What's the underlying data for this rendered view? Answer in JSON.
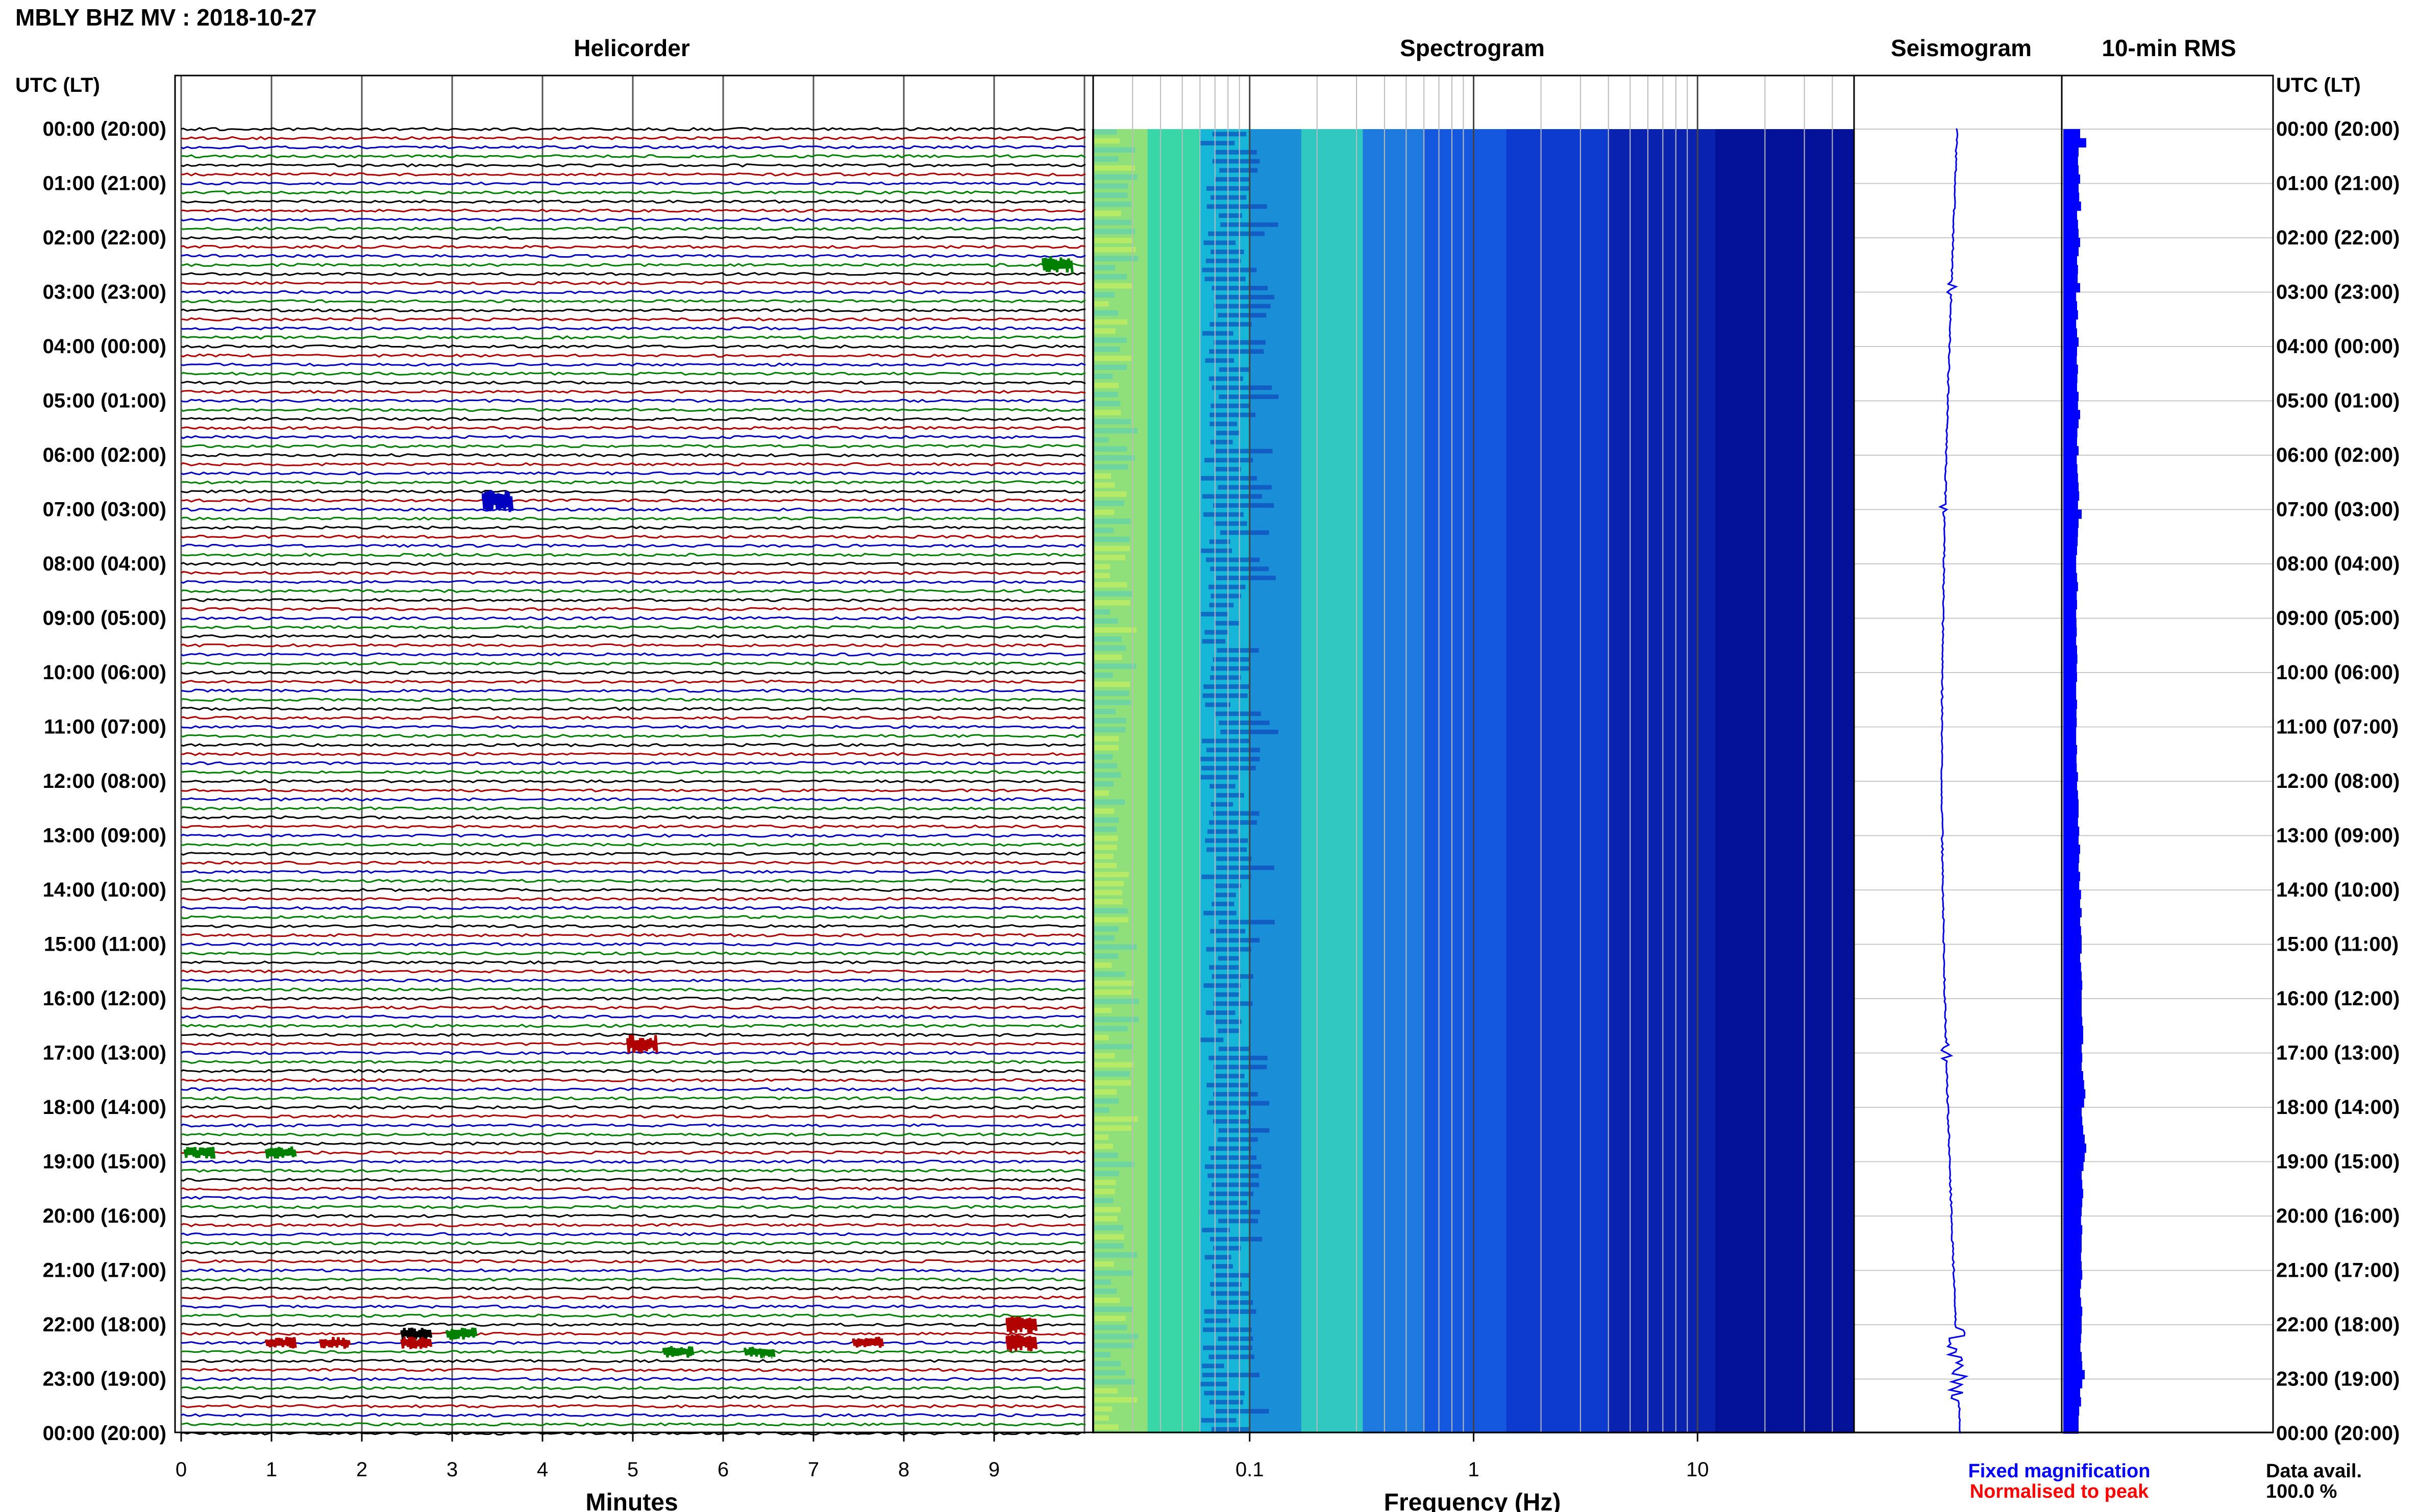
{
  "chart_data": {
    "type": "helicorder_spectrogram",
    "title": "MBLY BHZ MV : 2018-10-27",
    "panels": [
      {
        "name": "Helicorder",
        "xlabel": "Minutes",
        "x_ticks": [
          "0",
          "1",
          "2",
          "3",
          "4",
          "5",
          "6",
          "7",
          "8",
          "9"
        ],
        "xlim": [
          0,
          10
        ],
        "trace_colors": [
          "#000000",
          "#b00000",
          "#0000c0",
          "#008000"
        ],
        "lines_per_hour": 6,
        "events": [
          {
            "hour": 2,
            "line": 3,
            "minute": 9.7,
            "amp": 3,
            "color": "#008000"
          },
          {
            "hour": 6,
            "line": 5,
            "minute": 3.5,
            "amp": 4,
            "color": "#0000c0"
          },
          {
            "hour": 16,
            "line": 5,
            "minute": 5.1,
            "amp": 3,
            "color": "#b00000"
          },
          {
            "hour": 18,
            "line": 5,
            "minute": 0.2,
            "amp": 2,
            "color": "#008000"
          },
          {
            "hour": 18,
            "line": 5,
            "minute": 1.1,
            "amp": 2,
            "color": "#008000"
          },
          {
            "hour": 22,
            "line": 0,
            "minute": 9.3,
            "amp": 3,
            "color": "#b00000"
          },
          {
            "hour": 22,
            "line": 1,
            "minute": 2.6,
            "amp": 2,
            "color": "#000000"
          },
          {
            "hour": 22,
            "line": 1,
            "minute": 3.1,
            "amp": 2,
            "color": "#008000"
          },
          {
            "hour": 22,
            "line": 2,
            "minute": 1.1,
            "amp": 2,
            "color": "#b00000"
          },
          {
            "hour": 22,
            "line": 2,
            "minute": 1.7,
            "amp": 2,
            "color": "#b00000"
          },
          {
            "hour": 22,
            "line": 2,
            "minute": 2.6,
            "amp": 2,
            "color": "#b00000"
          },
          {
            "hour": 22,
            "line": 2,
            "minute": 7.6,
            "amp": 2,
            "color": "#b00000"
          },
          {
            "hour": 22,
            "line": 2,
            "minute": 9.3,
            "amp": 3,
            "color": "#b00000"
          },
          {
            "hour": 22,
            "line": 3,
            "minute": 5.5,
            "amp": 2,
            "color": "#008000"
          },
          {
            "hour": 22,
            "line": 3,
            "minute": 6.4,
            "amp": 2,
            "color": "#008000"
          }
        ]
      },
      {
        "name": "Spectrogram",
        "xlabel": "Frequency (Hz)",
        "x_scale": "log",
        "xlim": [
          0.02,
          50
        ],
        "x_ticks": [
          "0.1",
          "1",
          "10"
        ]
      },
      {
        "name": "Seismogram"
      },
      {
        "name": "10-min RMS",
        "rms": [
          0.55,
          0.75,
          0.5,
          0.48,
          0.5,
          0.55,
          0.5,
          0.52,
          0.58,
          0.45,
          0.48,
          0.5,
          0.55,
          0.5,
          0.45,
          0.48,
          0.47,
          0.55,
          0.42,
          0.45,
          0.48,
          0.42,
          0.45,
          0.5,
          0.45,
          0.44,
          0.48,
          0.46,
          0.45,
          0.5,
          0.48,
          0.55,
          0.5,
          0.46,
          0.45,
          0.5,
          0.44,
          0.46,
          0.48,
          0.5,
          0.52,
          0.48,
          0.6,
          0.5,
          0.48,
          0.47,
          0.45,
          0.42,
          0.42,
          0.45,
          0.48,
          0.44,
          0.45,
          0.42,
          0.43,
          0.44,
          0.42,
          0.45,
          0.46,
          0.44,
          0.45,
          0.42,
          0.42,
          0.45,
          0.43,
          0.44,
          0.42,
          0.42,
          0.45,
          0.43,
          0.44,
          0.48,
          0.45,
          0.48,
          0.5,
          0.5,
          0.48,
          0.52,
          0.5,
          0.55,
          0.52,
          0.5,
          0.55,
          0.52,
          0.58,
          0.55,
          0.6,
          0.55,
          0.58,
          0.6,
          0.6,
          0.55,
          0.58,
          0.6,
          0.62,
          0.6,
          0.6,
          0.6,
          0.62,
          0.65,
          0.65,
          0.6,
          0.62,
          0.6,
          0.65,
          0.68,
          0.72,
          0.68,
          0.6,
          0.62,
          0.65,
          0.7,
          0.75,
          0.7,
          0.66,
          0.6,
          0.62,
          0.65,
          0.62,
          0.6,
          0.58,
          0.62,
          0.6,
          0.6,
          0.58,
          0.6,
          0.62,
          0.58,
          0.55,
          0.58,
          0.62,
          0.6,
          0.6,
          0.58,
          0.56,
          0.6,
          0.62,
          0.7,
          0.62,
          0.55,
          0.58,
          0.52,
          0.5,
          0.5
        ]
      }
    ],
    "y_left_label": "UTC (LT)",
    "y_right_label": "UTC (LT)",
    "y_ticks": [
      "00:00 (20:00)",
      "01:00 (21:00)",
      "02:00 (22:00)",
      "03:00 (23:00)",
      "04:00 (00:00)",
      "05:00 (01:00)",
      "06:00 (02:00)",
      "07:00 (03:00)",
      "08:00 (04:00)",
      "09:00 (05:00)",
      "10:00 (06:00)",
      "11:00 (07:00)",
      "12:00 (08:00)",
      "13:00 (09:00)",
      "14:00 (10:00)",
      "15:00 (11:00)",
      "16:00 (12:00)",
      "17:00 (13:00)",
      "18:00 (14:00)",
      "19:00 (15:00)",
      "20:00 (16:00)",
      "21:00 (17:00)",
      "22:00 (18:00)",
      "23:00 (19:00)",
      "00:00 (20:00)"
    ],
    "legend": [
      {
        "label": "Fixed magnification",
        "color": "#0000ff"
      },
      {
        "label": "Normalised to peak",
        "color": "#ff0000"
      }
    ],
    "data_availability": {
      "label": "Data avail.",
      "value": "100.0 %"
    }
  },
  "colors": {
    "trace_blue": "#0000ee",
    "rms_blue": "#0000ff",
    "spec_dark": "#00007f"
  }
}
